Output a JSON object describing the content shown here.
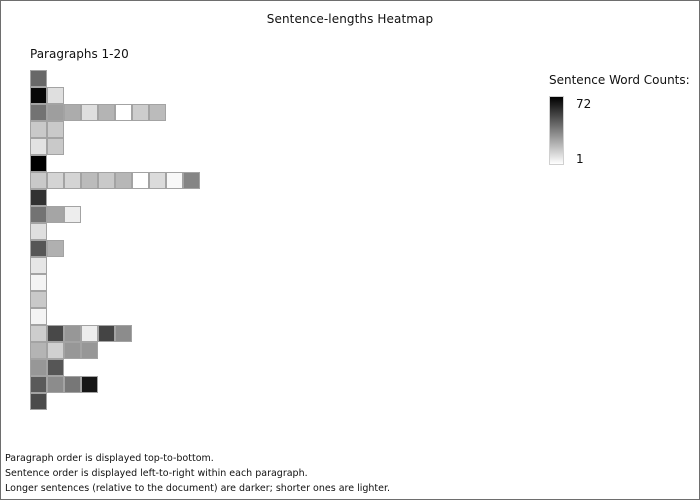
{
  "window": {
    "title": "Sentence-lengths Heatmap"
  },
  "heatmap": {
    "subtitle": "Paragraphs 1-20",
    "value_range": [
      1,
      72
    ],
    "paragraph_sentence_word_counts": [
      [
        43
      ],
      [
        70,
        10
      ],
      [
        40,
        28,
        24,
        10,
        22,
        1,
        15,
        20
      ],
      [
        16,
        16
      ],
      [
        9,
        16
      ],
      [
        72
      ],
      [
        16,
        13,
        13,
        20,
        16,
        21,
        1,
        11,
        3,
        35
      ],
      [
        58
      ],
      [
        40,
        26,
        6
      ],
      [
        10
      ],
      [
        48,
        23
      ],
      [
        8
      ],
      [
        4
      ],
      [
        16
      ],
      [
        4
      ],
      [
        15,
        52,
        30,
        6,
        53,
        33
      ],
      [
        22,
        14,
        30,
        30
      ],
      [
        30,
        48
      ],
      [
        47,
        33,
        39,
        66
      ],
      [
        51
      ]
    ]
  },
  "legend": {
    "title": "Sentence Word Counts:",
    "max_label": "72",
    "min_label": "1",
    "color_dark": "#000000",
    "color_light": "#ffffff"
  },
  "notes": {
    "line1": "Paragraph order is displayed top-to-bottom.",
    "line2": "Sentence order is displayed left-to-right within each paragraph.",
    "line3": "Longer sentences (relative to the document) are darker; shorter ones are lighter."
  }
}
